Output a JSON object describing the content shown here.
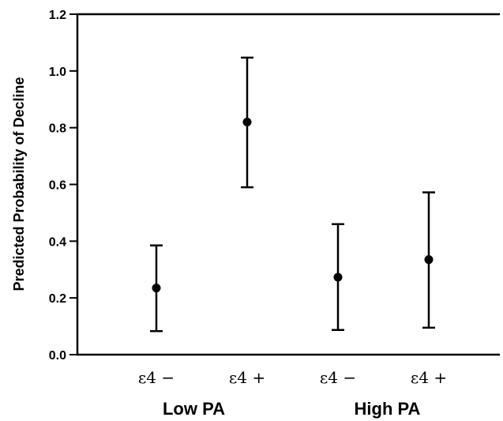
{
  "chart_data": {
    "type": "scatter",
    "title": "",
    "xlabel": "",
    "ylabel": "Predicted Probability of Decline",
    "ylim": [
      0.0,
      1.2
    ],
    "yticks": [
      "0.0",
      "0.2",
      "0.4",
      "0.6",
      "0.8",
      "1.0",
      "1.2"
    ],
    "grid": false,
    "categories": [
      "ε4 −",
      "ε4 +",
      "ε4 −",
      "ε4 +"
    ],
    "groups": [
      "Low PA",
      "High PA"
    ],
    "points": [
      {
        "label": "ε4 −",
        "group": "Low PA",
        "y": 0.235,
        "lower": 0.083,
        "upper": 0.385
      },
      {
        "label": "ε4 +",
        "group": "Low PA",
        "y": 0.82,
        "lower": 0.59,
        "upper": 1.047
      },
      {
        "label": "ε4 −",
        "group": "High PA",
        "y": 0.273,
        "lower": 0.087,
        "upper": 0.46
      },
      {
        "label": "ε4 +",
        "group": "High PA",
        "y": 0.335,
        "lower": 0.095,
        "upper": 0.572
      }
    ],
    "colors": {
      "marker": "#000000",
      "axes": "#000000"
    }
  }
}
